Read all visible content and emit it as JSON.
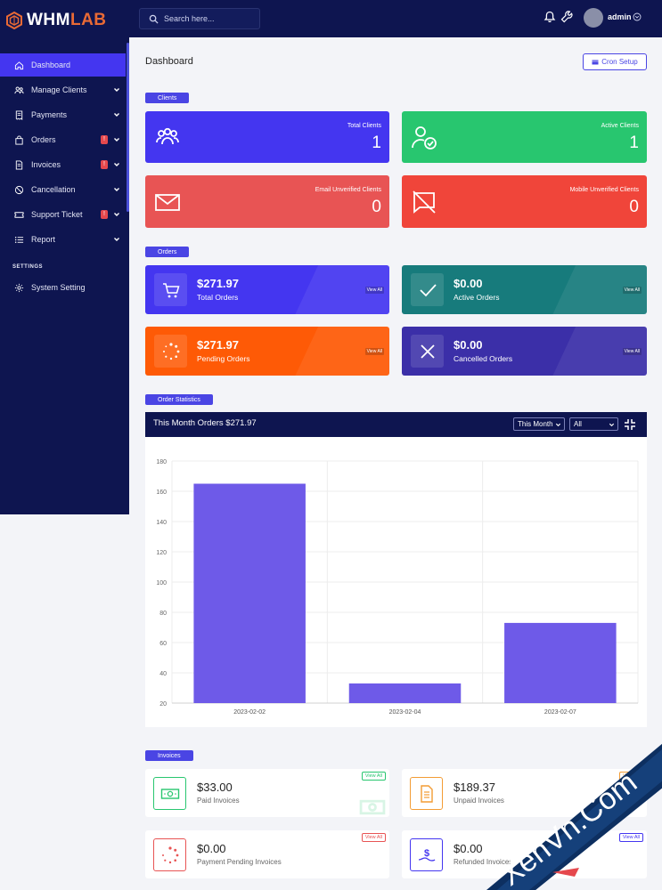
{
  "brand": {
    "name_prefix": "WHM",
    "name_suffix": "LAB",
    "accent_color": "#e96a35"
  },
  "search": {
    "placeholder": "Search here..."
  },
  "user": {
    "name": "admin"
  },
  "sidebar": {
    "items": [
      {
        "label": "Dashboard",
        "icon": "home-icon"
      },
      {
        "label": "Manage Clients",
        "icon": "users-icon"
      },
      {
        "label": "Payments",
        "icon": "receipt-icon"
      },
      {
        "label": "Orders",
        "icon": "bag-icon",
        "badge": "!"
      },
      {
        "label": "Invoices",
        "icon": "document-icon",
        "badge": "!"
      },
      {
        "label": "Cancellation",
        "icon": "ban-icon"
      },
      {
        "label": "Support Ticket",
        "icon": "ticket-icon",
        "badge": "!"
      },
      {
        "label": "Report",
        "icon": "list-icon"
      }
    ],
    "section_label": "SETTINGS",
    "settings_item": {
      "label": "System Setting",
      "icon": "gear-icon"
    }
  },
  "page": {
    "title": "Dashboard",
    "cron_label": "Cron Setup"
  },
  "sections": {
    "clients": "Clients",
    "orders": "Orders",
    "order_stats": "Order Statistics",
    "invoices": "Invoices"
  },
  "clients": [
    {
      "label": "Total Clients",
      "value": "1",
      "color": "#4436f0"
    },
    {
      "label": "Active Clients",
      "value": "1",
      "color": "#28c66f"
    },
    {
      "label": "Email Unverified Clients",
      "value": "0",
      "color": "#e85454"
    },
    {
      "label": "Mobile Unverified Clients",
      "value": "0",
      "color": "#f0453a"
    }
  ],
  "orders": [
    {
      "value": "$271.97",
      "label": "Total Orders",
      "view": "View All",
      "color": "#4436f0"
    },
    {
      "value": "$0.00",
      "label": "Active Orders",
      "view": "View All",
      "color": "#177b7c"
    },
    {
      "value": "$271.97",
      "label": "Pending Orders",
      "view": "View All",
      "color": "#fe5a06"
    },
    {
      "value": "$0.00",
      "label": "Cancelled Orders",
      "view": "View All",
      "color": "#3b2fa8"
    }
  ],
  "order_stats": {
    "title": "This Month Orders $271.97",
    "period_select": "This Month",
    "filter_select": "All"
  },
  "chart_data": {
    "type": "bar",
    "categories": [
      "2023-02-02",
      "2023-02-04",
      "2023-02-07"
    ],
    "values": [
      165,
      33,
      73
    ],
    "ylim": [
      20,
      180
    ],
    "yticks": [
      20,
      40,
      60,
      80,
      100,
      120,
      140,
      160,
      180
    ],
    "grid": true,
    "bar_color": "#6e5ae8"
  },
  "invoices": [
    {
      "value": "$33.00",
      "label": "Paid Invoices",
      "view": "View All",
      "color": "#28c66f"
    },
    {
      "value": "$189.37",
      "label": "Unpaid Invoices",
      "view": "View All",
      "color": "#f39c34"
    },
    {
      "value": "$0.00",
      "label": "Payment Pending Invoices",
      "view": "View All",
      "color": "#e85454"
    },
    {
      "value": "$0.00",
      "label": "Refunded Invoices",
      "view": "View All",
      "color": "#4436f0"
    }
  ]
}
